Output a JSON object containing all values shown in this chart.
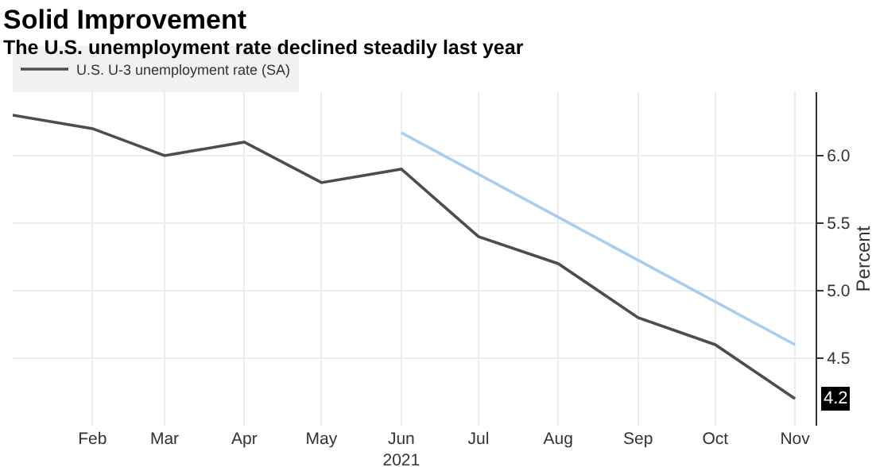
{
  "chart_data": {
    "type": "line",
    "title": "Solid Improvement",
    "subtitle": "The U.S. unemployment rate declined steadily last year",
    "ylabel": "Percent",
    "x": [
      "2021-01",
      "2021-02",
      "2021-03",
      "2021-04",
      "2021-05",
      "2021-06",
      "2021-07",
      "2021-08",
      "2021-09",
      "2021-10",
      "2021-11"
    ],
    "series": [
      {
        "name": "U.S. U-3 unemployment rate (SA)",
        "color": "#4d4d4d",
        "values": [
          6.3,
          6.2,
          6.0,
          6.1,
          5.8,
          5.9,
          5.4,
          5.2,
          4.8,
          4.6,
          4.2
        ]
      },
      {
        "type": "line",
        "color": "#a9cdee",
        "x": [
          "2021-06",
          "2021-11"
        ],
        "values": [
          6.17,
          4.6
        ]
      }
    ],
    "xlim": [
      "2021-01-01",
      "2021-11-09"
    ],
    "xticks": [
      {
        "value": "2021-02",
        "label": "Feb"
      },
      {
        "value": "2021-03",
        "label": "Mar"
      },
      {
        "value": "2021-04",
        "label": "Apr"
      },
      {
        "value": "2021-05",
        "label": "May"
      },
      {
        "value": "2021-06",
        "label": "Jun\n2021"
      },
      {
        "value": "2021-07",
        "label": "Jul"
      },
      {
        "value": "2021-08",
        "label": "Aug"
      },
      {
        "value": "2021-09",
        "label": "Sep"
      },
      {
        "value": "2021-10",
        "label": "Oct"
      },
      {
        "value": "2021-11",
        "label": "Nov"
      }
    ],
    "ylim": [
      4.0,
      6.47
    ],
    "yticks": [
      {
        "value": 4.5,
        "label": "4.5"
      },
      {
        "value": 5.0,
        "label": "5.0"
      },
      {
        "value": 5.5,
        "label": "5.5"
      },
      {
        "value": 6.0,
        "label": "6.0"
      }
    ],
    "annotations": [
      {
        "text": "4.2",
        "x": "2021-11",
        "y": 4.2
      }
    ],
    "grid": true,
    "legend": "top left",
    "marker": "none",
    "line_style": "solid"
  }
}
